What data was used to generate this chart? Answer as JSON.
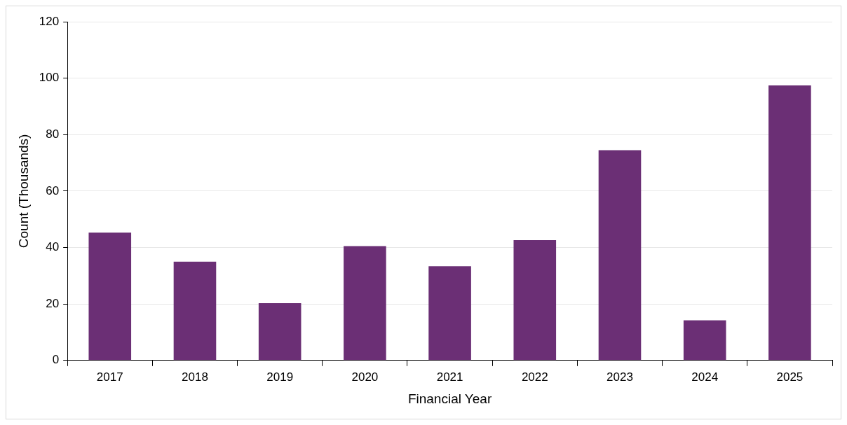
{
  "chart_data": {
    "type": "bar",
    "xlabel": "Financial Year",
    "ylabel": "Count (Thousands)",
    "categories": [
      "2017",
      "2018",
      "2019",
      "2020",
      "2021",
      "2022",
      "2023",
      "2024",
      "2025"
    ],
    "values": [
      45.3,
      35.0,
      20.3,
      40.5,
      33.4,
      42.6,
      74.5,
      14.2,
      97.4
    ],
    "color": "#6b2f75",
    "ylim": [
      0,
      120
    ],
    "yticks": [
      0,
      20,
      40,
      60,
      80,
      100,
      120
    ],
    "grid": "y",
    "legend": false
  }
}
